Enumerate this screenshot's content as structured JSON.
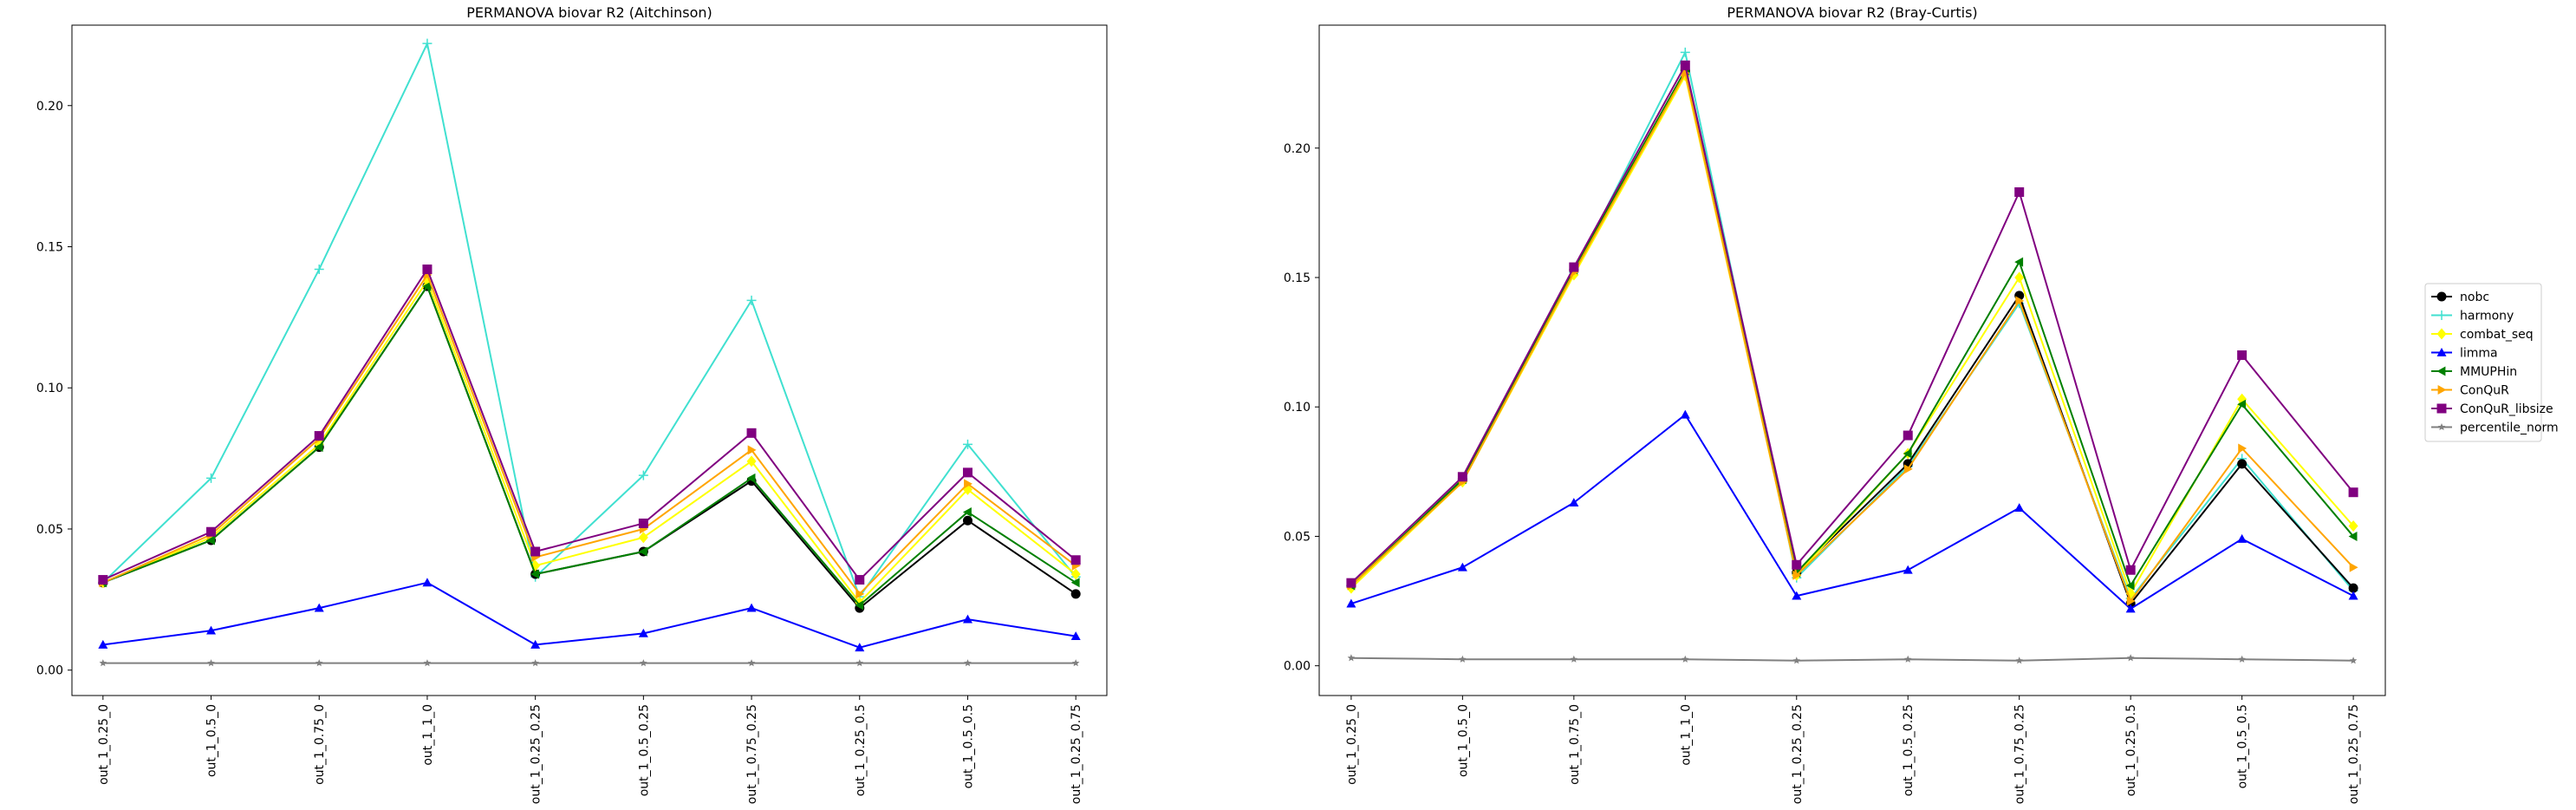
{
  "chart_data": [
    {
      "type": "line",
      "title": "PERMANOVA biovar R2 (Aitchinson)",
      "xlabel": "",
      "ylabel": "",
      "ylim": [
        -0.009,
        0.2285
      ],
      "yticks": [
        0.0,
        0.05,
        0.1,
        0.15,
        0.2
      ],
      "ytick_labels": [
        "0.00",
        "0.05",
        "0.10",
        "0.15",
        "0.20"
      ],
      "categories": [
        "out_1_0.25_0",
        "out_1_0.5_0",
        "out_1_0.75_0",
        "out_1_1_0",
        "out_1_0.25_0.25",
        "out_1_0.5_0.25",
        "out_1_0.75_0.25",
        "out_1_0.25_0.5",
        "out_1_0.5_0.5",
        "out_1_0.25_0.75"
      ],
      "grid": false,
      "series": [
        {
          "name": "nobc",
          "color": "#000000",
          "marker": "circle",
          "values": [
            0.031,
            0.046,
            0.079,
            0.136,
            0.034,
            0.042,
            0.067,
            0.022,
            0.053,
            0.027
          ]
        },
        {
          "name": "harmony",
          "color": "#40e0d0",
          "marker": "plus",
          "values": [
            0.031,
            0.068,
            0.142,
            0.222,
            0.033,
            0.069,
            0.131,
            0.026,
            0.08,
            0.033
          ]
        },
        {
          "name": "combat_seq",
          "color": "#ffff00",
          "marker": "diamond",
          "values": [
            0.031,
            0.047,
            0.08,
            0.138,
            0.037,
            0.047,
            0.074,
            0.024,
            0.064,
            0.034
          ]
        },
        {
          "name": "limma",
          "color": "#0000ff",
          "marker": "triangle-up",
          "values": [
            0.009,
            0.014,
            0.022,
            0.031,
            0.009,
            0.013,
            0.022,
            0.008,
            0.018,
            0.012
          ]
        },
        {
          "name": "MMUPHin",
          "color": "#008000",
          "marker": "triangle-left",
          "values": [
            0.031,
            0.046,
            0.079,
            0.136,
            0.034,
            0.042,
            0.068,
            0.023,
            0.056,
            0.031
          ]
        },
        {
          "name": "ConQuR",
          "color": "#ffa500",
          "marker": "triangle-right",
          "values": [
            0.031,
            0.048,
            0.082,
            0.14,
            0.04,
            0.05,
            0.078,
            0.027,
            0.066,
            0.037
          ]
        },
        {
          "name": "ConQuR_libsize",
          "color": "#800080",
          "marker": "square",
          "values": [
            0.032,
            0.049,
            0.083,
            0.142,
            0.042,
            0.052,
            0.084,
            0.032,
            0.07,
            0.039
          ]
        },
        {
          "name": "percentile_norm",
          "color": "#808080",
          "marker": "star",
          "values": [
            0.0025,
            0.0025,
            0.0025,
            0.0025,
            0.0025,
            0.0025,
            0.0025,
            0.0025,
            0.0025,
            0.0025
          ]
        }
      ]
    },
    {
      "type": "line",
      "title": "PERMANOVA biovar R2 (Bray-Curtis)",
      "xlabel": "",
      "ylabel": "",
      "ylim": [
        -0.0115,
        0.2475
      ],
      "yticks": [
        0.0,
        0.05,
        0.1,
        0.15,
        0.2
      ],
      "ytick_labels": [
        "0.00",
        "0.05",
        "0.10",
        "0.15",
        "0.20"
      ],
      "categories": [
        "out_1_0.25_0",
        "out_1_0.5_0",
        "out_1_0.75_0",
        "out_1_1_0",
        "out_1_0.25_0.25",
        "out_1_0.5_0.25",
        "out_1_0.75_0.25",
        "out_1_0.25_0.5",
        "out_1_0.5_0.5",
        "out_1_0.25_0.75"
      ],
      "grid": false,
      "series": [
        {
          "name": "nobc",
          "color": "#000000",
          "marker": "circle",
          "values": [
            0.031,
            0.072,
            0.153,
            0.23,
            0.036,
            0.078,
            0.143,
            0.024,
            0.078,
            0.03
          ]
        },
        {
          "name": "harmony",
          "color": "#40e0d0",
          "marker": "plus",
          "values": [
            0.031,
            0.071,
            0.152,
            0.237,
            0.034,
            0.077,
            0.14,
            0.026,
            0.08,
            0.029
          ]
        },
        {
          "name": "combat_seq",
          "color": "#ffff00",
          "marker": "diamond",
          "values": [
            0.03,
            0.071,
            0.151,
            0.228,
            0.035,
            0.082,
            0.15,
            0.028,
            0.103,
            0.054
          ]
        },
        {
          "name": "limma",
          "color": "#0000ff",
          "marker": "triangle-up",
          "values": [
            0.024,
            0.038,
            0.063,
            0.097,
            0.027,
            0.037,
            0.061,
            0.022,
            0.049,
            0.027
          ]
        },
        {
          "name": "MMUPHin",
          "color": "#008000",
          "marker": "triangle-left",
          "values": [
            0.031,
            0.072,
            0.153,
            0.23,
            0.036,
            0.082,
            0.156,
            0.031,
            0.101,
            0.05
          ]
        },
        {
          "name": "ConQuR",
          "color": "#ffa500",
          "marker": "triangle-right",
          "values": [
            0.031,
            0.071,
            0.152,
            0.229,
            0.035,
            0.076,
            0.141,
            0.025,
            0.084,
            0.038
          ]
        },
        {
          "name": "ConQuR_libsize",
          "color": "#800080",
          "marker": "square",
          "values": [
            0.032,
            0.073,
            0.154,
            0.232,
            0.039,
            0.089,
            0.183,
            0.037,
            0.12,
            0.067
          ]
        },
        {
          "name": "percentile_norm",
          "color": "#808080",
          "marker": "star",
          "values": [
            0.003,
            0.0025,
            0.0025,
            0.0025,
            0.002,
            0.0025,
            0.002,
            0.003,
            0.0025,
            0.002
          ]
        }
      ]
    }
  ],
  "legend": {
    "placement": "right-center",
    "entries": [
      "nobc",
      "harmony",
      "combat_seq",
      "limma",
      "MMUPHin",
      "ConQuR",
      "ConQuR_libsize",
      "percentile_norm"
    ]
  }
}
